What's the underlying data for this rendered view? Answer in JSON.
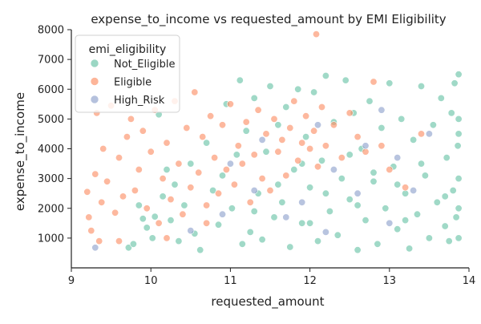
{
  "chart_data": {
    "type": "scatter",
    "title": "expense_to_income vs requested_amount by EMI Eligibility",
    "xlabel": "requested_amount",
    "ylabel": "expense_to_income",
    "xlim": [
      9.0,
      14.0
    ],
    "ylim": [
      0,
      8000
    ],
    "x_ticks": [
      9,
      10,
      11,
      12,
      13,
      14
    ],
    "y_ticks": [
      1000,
      2000,
      3000,
      4000,
      5000,
      6000,
      7000,
      8000
    ],
    "x_tick_labels": [
      "9",
      "10",
      "11",
      "12",
      "13",
      "14"
    ],
    "y_tick_labels": [
      "1000",
      "2000",
      "3000",
      "4000",
      "5000",
      "6000",
      "7000",
      "8000"
    ],
    "grid": false,
    "legend": {
      "title": "emi_eligibility",
      "placement": "top-left"
    },
    "series": [
      {
        "name": "Not_Eligible",
        "color": "#66c2a5",
        "points": [
          [
            9.72,
            680
          ],
          [
            9.78,
            800
          ],
          [
            9.85,
            2100
          ],
          [
            9.9,
            1650
          ],
          [
            9.95,
            1350
          ],
          [
            10.02,
            1000
          ],
          [
            10.05,
            1720
          ],
          [
            10.1,
            5150
          ],
          [
            10.15,
            2400
          ],
          [
            10.2,
            3300
          ],
          [
            10.25,
            1600
          ],
          [
            10.3,
            2800
          ],
          [
            10.35,
            900
          ],
          [
            10.42,
            2100
          ],
          [
            10.5,
            3500
          ],
          [
            10.55,
            1150
          ],
          [
            10.62,
            600
          ],
          [
            10.7,
            4200
          ],
          [
            10.78,
            2600
          ],
          [
            10.85,
            1450
          ],
          [
            10.9,
            3100
          ],
          [
            10.95,
            5500
          ],
          [
            11.02,
            2000
          ],
          [
            11.08,
            3800
          ],
          [
            11.12,
            6300
          ],
          [
            11.15,
            800
          ],
          [
            11.2,
            4600
          ],
          [
            11.25,
            1200
          ],
          [
            11.3,
            5700
          ],
          [
            11.35,
            2500
          ],
          [
            11.4,
            950
          ],
          [
            11.45,
            3900
          ],
          [
            11.5,
            6100
          ],
          [
            11.55,
            1700
          ],
          [
            11.6,
            4800
          ],
          [
            11.65,
            2200
          ],
          [
            11.7,
            5400
          ],
          [
            11.75,
            700
          ],
          [
            11.8,
            3300
          ],
          [
            11.85,
            6000
          ],
          [
            11.9,
            1500
          ],
          [
            11.95,
            4400
          ],
          [
            12.0,
            2700
          ],
          [
            12.05,
            5900
          ],
          [
            12.1,
            900
          ],
          [
            12.15,
            3600
          ],
          [
            12.2,
            6450
          ],
          [
            12.25,
            1900
          ],
          [
            12.3,
            4900
          ],
          [
            12.35,
            1100
          ],
          [
            12.4,
            3000
          ],
          [
            12.45,
            6300
          ],
          [
            12.5,
            2300
          ],
          [
            12.55,
            5200
          ],
          [
            12.6,
            600
          ],
          [
            12.65,
            4000
          ],
          [
            12.7,
            1600
          ],
          [
            12.75,
            5600
          ],
          [
            12.8,
            2900
          ],
          [
            12.85,
            800
          ],
          [
            12.9,
            4700
          ],
          [
            12.95,
            2000
          ],
          [
            13.0,
            6200
          ],
          [
            13.05,
            3400
          ],
          [
            13.1,
            1300
          ],
          [
            13.15,
            5000
          ],
          [
            13.2,
            2500
          ],
          [
            13.25,
            650
          ],
          [
            13.3,
            4300
          ],
          [
            13.35,
            1800
          ],
          [
            13.4,
            6100
          ],
          [
            13.45,
            3100
          ],
          [
            13.5,
            1000
          ],
          [
            13.55,
            4800
          ],
          [
            13.6,
            2200
          ],
          [
            13.65,
            5700
          ],
          [
            13.7,
            1400
          ],
          [
            13.72,
            3700
          ],
          [
            13.75,
            900
          ],
          [
            13.78,
            5200
          ],
          [
            13.8,
            2600
          ],
          [
            13.82,
            6200
          ],
          [
            13.84,
            1700
          ],
          [
            13.86,
            4100
          ],
          [
            13.87,
            3000
          ],
          [
            13.87,
            2000
          ],
          [
            13.87,
            1000
          ],
          [
            13.87,
            5000
          ],
          [
            13.87,
            6500
          ],
          [
            13.87,
            4500
          ],
          [
            11.6,
            2800
          ],
          [
            11.9,
            3500
          ],
          [
            12.2,
            2500
          ],
          [
            12.5,
            3800
          ],
          [
            12.8,
            3200
          ],
          [
            13.1,
            2800
          ],
          [
            13.4,
            3500
          ],
          [
            13.7,
            2400
          ],
          [
            11.3,
            1900
          ],
          [
            12.0,
            1500
          ],
          [
            12.6,
            2100
          ],
          [
            13.2,
            1600
          ]
        ]
      },
      {
        "name": "Eligible",
        "color": "#fc8d62",
        "points": [
          [
            9.2,
            2550
          ],
          [
            9.22,
            1700
          ],
          [
            9.25,
            1250
          ],
          [
            9.3,
            3150
          ],
          [
            9.32,
            5200
          ],
          [
            9.38,
            2200
          ],
          [
            9.4,
            4000
          ],
          [
            9.45,
            2900
          ],
          [
            9.5,
            5450
          ],
          [
            9.55,
            1850
          ],
          [
            9.6,
            3700
          ],
          [
            9.65,
            2400
          ],
          [
            9.7,
            4400
          ],
          [
            9.75,
            5000
          ],
          [
            9.8,
            2600
          ],
          [
            9.85,
            3300
          ],
          [
            9.9,
            4600
          ],
          [
            9.95,
            2000
          ],
          [
            10.0,
            3900
          ],
          [
            10.05,
            5300
          ],
          [
            10.1,
            1500
          ],
          [
            10.15,
            3000
          ],
          [
            10.2,
            4200
          ],
          [
            10.25,
            2300
          ],
          [
            10.3,
            5600
          ],
          [
            10.35,
            3500
          ],
          [
            10.4,
            1800
          ],
          [
            10.45,
            4700
          ],
          [
            10.5,
            2700
          ],
          [
            10.55,
            5900
          ],
          [
            10.6,
            3200
          ],
          [
            10.65,
            4400
          ],
          [
            10.7,
            2100
          ],
          [
            10.75,
            5100
          ],
          [
            10.8,
            3700
          ],
          [
            10.85,
            2500
          ],
          [
            10.9,
            4800
          ],
          [
            10.95,
            3300
          ],
          [
            11.0,
            5500
          ],
          [
            11.05,
            2800
          ],
          [
            11.1,
            4100
          ],
          [
            11.15,
            3500
          ],
          [
            11.2,
            4900
          ],
          [
            11.25,
            2200
          ],
          [
            11.3,
            3800
          ],
          [
            11.35,
            5300
          ],
          [
            11.4,
            3000
          ],
          [
            11.45,
            4500
          ],
          [
            11.5,
            2600
          ],
          [
            11.55,
            5000
          ],
          [
            11.6,
            3900
          ],
          [
            11.65,
            4300
          ],
          [
            11.7,
            3100
          ],
          [
            11.75,
            4700
          ],
          [
            11.8,
            5600
          ],
          [
            11.85,
            3600
          ],
          [
            11.9,
            4200
          ],
          [
            11.95,
            5100
          ],
          [
            12.0,
            4000
          ],
          [
            12.05,
            4600
          ],
          [
            12.08,
            7850
          ],
          [
            12.1,
            3400
          ],
          [
            12.15,
            5400
          ],
          [
            12.2,
            4100
          ],
          [
            12.3,
            4800
          ],
          [
            12.4,
            3700
          ],
          [
            12.5,
            5200
          ],
          [
            12.6,
            4400
          ],
          [
            12.7,
            3900
          ],
          [
            12.8,
            6250
          ],
          [
            12.9,
            4100
          ],
          [
            13.0,
            3300
          ],
          [
            13.2,
            2700
          ],
          [
            13.4,
            4500
          ],
          [
            10.7,
            1500
          ],
          [
            10.2,
            1000
          ],
          [
            9.6,
            900
          ],
          [
            9.35,
            900
          ]
        ]
      },
      {
        "name": "High_Risk",
        "color": "#8da0cb",
        "points": [
          [
            9.3,
            680
          ],
          [
            10.5,
            1250
          ],
          [
            11.0,
            3500
          ],
          [
            11.4,
            4300
          ],
          [
            11.7,
            1700
          ],
          [
            11.9,
            2200
          ],
          [
            12.1,
            4800
          ],
          [
            12.3,
            3300
          ],
          [
            12.6,
            2500
          ],
          [
            12.9,
            5300
          ],
          [
            13.1,
            3700
          ],
          [
            13.3,
            2600
          ],
          [
            13.5,
            4500
          ],
          [
            13.0,
            1500
          ],
          [
            12.2,
            1200
          ],
          [
            11.3,
            2600
          ],
          [
            10.9,
            1800
          ],
          [
            12.7,
            4100
          ]
        ]
      }
    ]
  }
}
